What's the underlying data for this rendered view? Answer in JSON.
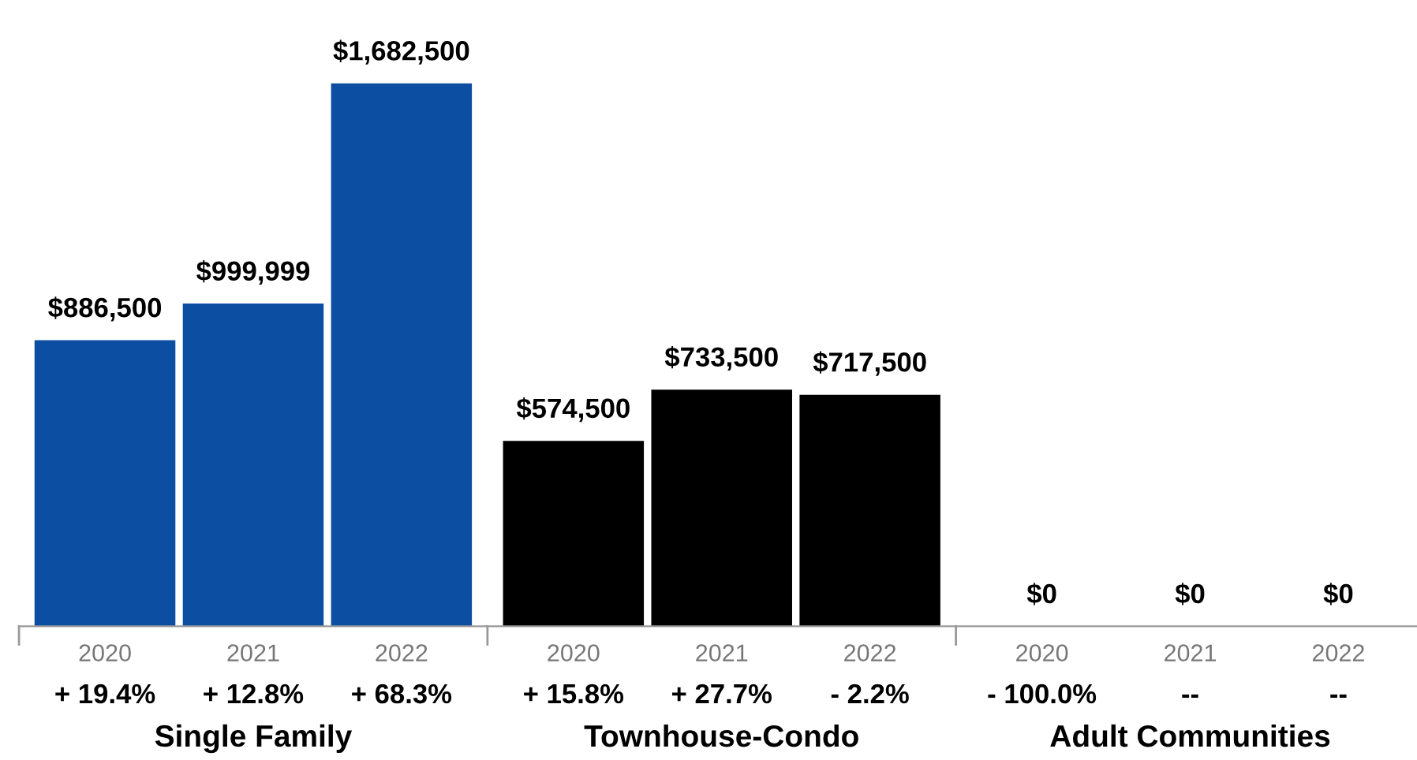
{
  "chart_data": {
    "type": "bar",
    "categories": [
      "2020",
      "2021",
      "2022",
      "2020",
      "2021",
      "2022",
      "2020",
      "2021",
      "2022"
    ],
    "values": [
      886500,
      999999,
      1682500,
      574500,
      733500,
      717500,
      0,
      0,
      0
    ],
    "value_labels": [
      "$886,500",
      "$999,999",
      "$1,682,500",
      "$574,500",
      "$733,500",
      "$717,500",
      "$0",
      "$0",
      "$0"
    ],
    "colors": [
      "#0b4ea2",
      "#0b4ea2",
      "#0b4ea2",
      "#000000",
      "#000000",
      "#000000",
      "#0b4ea2",
      "#0b4ea2",
      "#0b4ea2"
    ],
    "annotations": [
      "+ 19.4%",
      "+ 12.8%",
      "+ 68.3%",
      "+ 15.8%",
      "+ 27.7%",
      "- 2.2%",
      "- 100.0%",
      "--",
      "--",
      "Single Family",
      "Townhouse-Condo",
      "Adult Communities"
    ],
    "grid": false,
    "legend": false
  }
}
